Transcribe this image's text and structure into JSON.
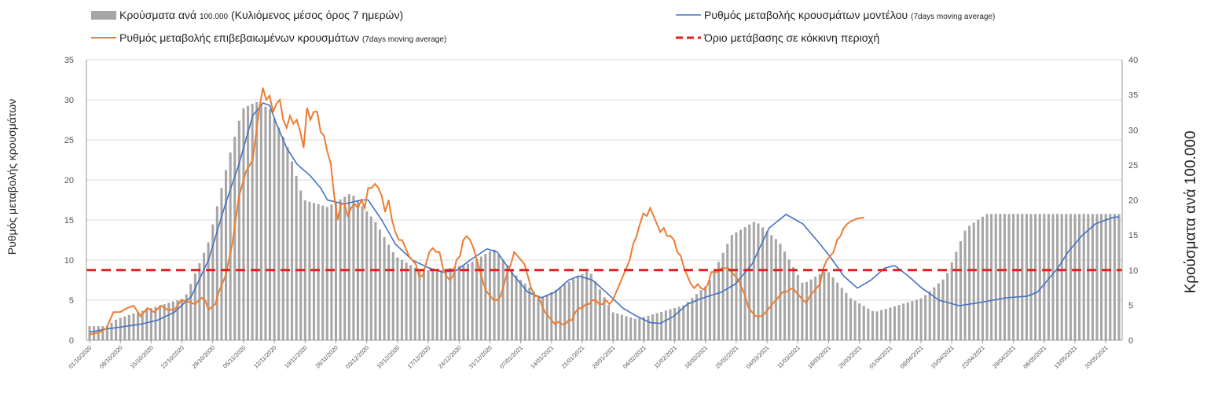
{
  "chart_data": {
    "type": "bar+line",
    "legend": {
      "bars": {
        "main": "Κρούσματα ανά ",
        "num": "100.000",
        "paren": " (Κυλιόμενος μέσος όρος 7 ημερών)"
      },
      "model": {
        "main": "Ρυθμός μεταβολής κρουσμάτων μοντέλου ",
        "paren": "(7days moving average)"
      },
      "confirmed": {
        "main": "Ρυθμός μεταβολής επιβεβαιωμένων κρουσμάτων ",
        "paren": "(7days moving average)"
      },
      "threshold": {
        "main": "Όριο μετάβασης σε κόκκινη περιοχή"
      }
    },
    "ylabel_left": "Ρυθμός μεταβολής κρουσμάτων",
    "ylabel_right": "Κρούσματα ανά 100.000",
    "ylim_left": [
      0,
      35
    ],
    "ylim_right": [
      0,
      40
    ],
    "yticks_left": [
      "0",
      "5",
      "10",
      "15",
      "20",
      "25",
      "30",
      "35"
    ],
    "yticks_right": [
      "0",
      "5",
      "10",
      "15",
      "20",
      "25",
      "30",
      "35",
      "40"
    ],
    "x_tick_labels": [
      "01/10/2020",
      "08/10/2020",
      "15/10/2020",
      "22/10/2020",
      "29/10/2020",
      "05/11/2020",
      "12/11/2020",
      "19/11/2020",
      "26/11/2020",
      "03/12/2020",
      "10/12/2020",
      "17/12/2020",
      "24/12/2020",
      "31/12/2020",
      "07/01/2021",
      "14/01/2021",
      "21/01/2021",
      "28/01/2021",
      "04/02/2021",
      "11/02/2021",
      "18/02/2021",
      "25/02/2021",
      "04/03/2021",
      "11/03/2021",
      "18/03/2021",
      "25/03/2021",
      "01/04/2021",
      "08/04/2021",
      "15/04/2021",
      "22/04/2021",
      "29/04/2021",
      "06/05/2021",
      "13/05/2021",
      "20/05/2021"
    ],
    "threshold_left": 8.75,
    "colors": {
      "bars": "#a6a6a6",
      "model": "#4472c4",
      "confirmed": "#ed7d31",
      "threshold": "#e0201b"
    },
    "grid": true,
    "legend_position": "top",
    "bars_anchor": [
      [
        0,
        2
      ],
      [
        5,
        2
      ],
      [
        8,
        3
      ],
      [
        14,
        4
      ],
      [
        21,
        5
      ],
      [
        28,
        6
      ],
      [
        35,
        14
      ],
      [
        41,
        26
      ],
      [
        45,
        33
      ],
      [
        49,
        34
      ],
      [
        53,
        33
      ],
      [
        58,
        28
      ],
      [
        63,
        20
      ],
      [
        70,
        19
      ],
      [
        77,
        21
      ],
      [
        84,
        17
      ],
      [
        90,
        12
      ],
      [
        97,
        10
      ],
      [
        104,
        10
      ],
      [
        112,
        11
      ],
      [
        119,
        13
      ],
      [
        126,
        9
      ],
      [
        133,
        6
      ],
      [
        140,
        8
      ],
      [
        147,
        10
      ],
      [
        154,
        4
      ],
      [
        161,
        3
      ],
      [
        168,
        4
      ],
      [
        175,
        5
      ],
      [
        182,
        8
      ],
      [
        189,
        15
      ],
      [
        196,
        17
      ],
      [
        203,
        14
      ],
      [
        210,
        8
      ],
      [
        217,
        10
      ],
      [
        224,
        6
      ],
      [
        231,
        4
      ],
      [
        238,
        5
      ],
      [
        245,
        6
      ],
      [
        252,
        9
      ],
      [
        258,
        16
      ],
      [
        264,
        18
      ]
    ],
    "model_anchor": [
      [
        0,
        1
      ],
      [
        5,
        1.4
      ],
      [
        10,
        1.7
      ],
      [
        15,
        2
      ],
      [
        20,
        2.5
      ],
      [
        25,
        3.5
      ],
      [
        30,
        5.5
      ],
      [
        35,
        10
      ],
      [
        40,
        17
      ],
      [
        44,
        22
      ],
      [
        48,
        28
      ],
      [
        51,
        29.6
      ],
      [
        53,
        29.3
      ],
      [
        55,
        27
      ],
      [
        58,
        24
      ],
      [
        61,
        22
      ],
      [
        65,
        20.5
      ],
      [
        68,
        19
      ],
      [
        70,
        17.5
      ],
      [
        75,
        17
      ],
      [
        80,
        17.5
      ],
      [
        82,
        17.5
      ],
      [
        86,
        15
      ],
      [
        90,
        12
      ],
      [
        95,
        10
      ],
      [
        100,
        9
      ],
      [
        104,
        8.5
      ],
      [
        108,
        8.7
      ],
      [
        112,
        10
      ],
      [
        117,
        11.4
      ],
      [
        120,
        11
      ],
      [
        125,
        8
      ],
      [
        129,
        6
      ],
      [
        133,
        5.3
      ],
      [
        137,
        6
      ],
      [
        141,
        7.5
      ],
      [
        144,
        8
      ],
      [
        148,
        7.5
      ],
      [
        152,
        6
      ],
      [
        157,
        4
      ],
      [
        161,
        3
      ],
      [
        165,
        2.2
      ],
      [
        168,
        2.1
      ],
      [
        172,
        3
      ],
      [
        176,
        4.5
      ],
      [
        180,
        5.2
      ],
      [
        186,
        6
      ],
      [
        190,
        7
      ],
      [
        195,
        9.5
      ],
      [
        200,
        14
      ],
      [
        205,
        15.7
      ],
      [
        210,
        14.5
      ],
      [
        215,
        12
      ],
      [
        218,
        10.4
      ],
      [
        222,
        8
      ],
      [
        226,
        6.5
      ],
      [
        230,
        7.5
      ],
      [
        234,
        9
      ],
      [
        237,
        9.3
      ],
      [
        241,
        8
      ],
      [
        245,
        6.5
      ],
      [
        250,
        5
      ],
      [
        256,
        4.3
      ],
      [
        262,
        4.7
      ],
      [
        270,
        5.3
      ],
      [
        276,
        5.5
      ],
      [
        279,
        6
      ],
      [
        282,
        7.5
      ],
      [
        285,
        9
      ],
      [
        288,
        11
      ],
      [
        292,
        13
      ],
      [
        296,
        14.5
      ],
      [
        301,
        15.3
      ],
      [
        303,
        15.4
      ]
    ],
    "confirmed_anchor": [
      [
        0,
        0.7
      ],
      [
        3,
        1
      ],
      [
        5,
        1.5
      ],
      [
        7,
        3.5
      ],
      [
        9,
        3.5
      ],
      [
        11,
        4
      ],
      [
        13,
        4.3
      ],
      [
        15,
        3
      ],
      [
        17,
        4
      ],
      [
        19,
        3.5
      ],
      [
        21,
        4.3
      ],
      [
        23,
        3.8
      ],
      [
        25,
        3.8
      ],
      [
        27,
        5
      ],
      [
        29,
        4.8
      ],
      [
        31,
        4.5
      ],
      [
        33,
        5.3
      ],
      [
        34,
        5
      ],
      [
        35,
        3.8
      ],
      [
        37,
        4.5
      ],
      [
        38,
        6
      ],
      [
        40,
        8
      ],
      [
        42,
        12
      ],
      [
        44,
        18
      ],
      [
        46,
        21
      ],
      [
        48,
        22.5
      ],
      [
        50,
        29
      ],
      [
        51,
        31.5
      ],
      [
        52,
        30
      ],
      [
        53,
        30.5
      ],
      [
        54,
        28.5
      ],
      [
        55,
        29.5
      ],
      [
        56,
        30
      ],
      [
        57,
        27.5
      ],
      [
        58,
        26.5
      ],
      [
        59,
        28
      ],
      [
        60,
        27
      ],
      [
        61,
        27.5
      ],
      [
        62,
        26
      ],
      [
        63,
        24
      ],
      [
        64,
        29
      ],
      [
        65,
        27.5
      ],
      [
        66,
        28.5
      ],
      [
        67,
        28.5
      ],
      [
        68,
        26
      ],
      [
        69,
        25.5
      ],
      [
        70,
        23.5
      ],
      [
        71,
        22
      ],
      [
        72,
        18
      ],
      [
        73,
        15
      ],
      [
        74,
        17
      ],
      [
        75,
        17
      ],
      [
        76,
        15.5
      ],
      [
        77,
        16.5
      ],
      [
        78,
        17
      ],
      [
        79,
        16.5
      ],
      [
        80,
        17.5
      ],
      [
        81,
        16.5
      ],
      [
        82,
        19
      ],
      [
        83,
        19
      ],
      [
        84,
        19.5
      ],
      [
        85,
        19
      ],
      [
        86,
        18
      ],
      [
        87,
        16
      ],
      [
        88,
        17.5
      ],
      [
        89,
        15
      ],
      [
        90,
        13.5
      ],
      [
        91,
        12.5
      ],
      [
        92,
        12.5
      ],
      [
        93,
        11.5
      ],
      [
        94,
        10.5
      ],
      [
        95,
        10
      ],
      [
        96,
        9.5
      ],
      [
        97,
        8
      ],
      [
        98,
        8
      ],
      [
        99,
        9.5
      ],
      [
        100,
        11
      ],
      [
        101,
        11.5
      ],
      [
        102,
        11
      ],
      [
        103,
        11
      ],
      [
        104,
        9
      ],
      [
        105,
        8
      ],
      [
        106,
        7.5
      ],
      [
        107,
        8
      ],
      [
        108,
        10
      ],
      [
        109,
        10.5
      ],
      [
        110,
        12.5
      ],
      [
        111,
        13
      ],
      [
        112,
        12.5
      ],
      [
        113,
        11.5
      ],
      [
        114,
        10
      ],
      [
        115,
        8.5
      ],
      [
        116,
        7
      ],
      [
        117,
        6
      ],
      [
        118,
        5.5
      ],
      [
        119,
        5
      ],
      [
        120,
        5
      ],
      [
        121,
        5.5
      ],
      [
        122,
        7
      ],
      [
        123,
        8.5
      ],
      [
        124,
        9.5
      ],
      [
        125,
        11
      ],
      [
        126,
        10.5
      ],
      [
        127,
        10
      ],
      [
        128,
        9.5
      ],
      [
        129,
        8
      ],
      [
        130,
        6.5
      ],
      [
        131,
        5.5
      ],
      [
        132,
        5.5
      ],
      [
        133,
        4.5
      ],
      [
        134,
        3.5
      ],
      [
        135,
        3
      ],
      [
        136,
        2.5
      ],
      [
        137,
        2
      ],
      [
        138,
        2.3
      ],
      [
        139,
        2
      ],
      [
        140,
        2
      ],
      [
        141,
        2.5
      ],
      [
        142,
        2.5
      ],
      [
        143,
        3.5
      ],
      [
        144,
        4
      ],
      [
        145,
        4
      ],
      [
        146,
        4.5
      ],
      [
        147,
        4.5
      ],
      [
        148,
        5
      ],
      [
        149,
        5
      ],
      [
        150,
        4.5
      ],
      [
        151,
        4.5
      ],
      [
        152,
        5
      ],
      [
        153,
        4.5
      ],
      [
        154,
        5
      ],
      [
        155,
        6
      ],
      [
        156,
        7
      ],
      [
        157,
        8
      ],
      [
        158,
        9
      ],
      [
        159,
        10
      ],
      [
        160,
        12
      ],
      [
        161,
        13
      ],
      [
        162,
        14.5
      ],
      [
        163,
        15.8
      ],
      [
        164,
        15.5
      ],
      [
        165,
        16.5
      ],
      [
        166,
        15.5
      ],
      [
        167,
        14.5
      ],
      [
        168,
        13.5
      ],
      [
        169,
        14
      ],
      [
        170,
        13
      ],
      [
        171,
        13
      ],
      [
        172,
        12.5
      ],
      [
        173,
        11
      ],
      [
        174,
        10.5
      ],
      [
        175,
        9
      ],
      [
        176,
        8
      ],
      [
        177,
        7
      ],
      [
        178,
        6.5
      ],
      [
        179,
        7
      ],
      [
        180,
        6.5
      ],
      [
        181,
        6.3
      ],
      [
        182,
        7
      ],
      [
        183,
        8.5
      ],
      [
        184,
        8.5
      ],
      [
        185,
        8.5
      ],
      [
        186,
        9
      ],
      [
        187,
        9
      ],
      [
        188,
        9
      ],
      [
        189,
        8.5
      ],
      [
        190,
        8
      ],
      [
        191,
        7.5
      ],
      [
        192,
        6.5
      ],
      [
        193,
        5.5
      ],
      [
        194,
        4
      ],
      [
        195,
        3.5
      ],
      [
        196,
        3
      ],
      [
        197,
        3
      ],
      [
        198,
        3
      ],
      [
        199,
        3.5
      ],
      [
        200,
        4
      ],
      [
        201,
        4.5
      ],
      [
        202,
        5
      ],
      [
        203,
        5.5
      ],
      [
        204,
        6
      ],
      [
        205,
        6
      ],
      [
        206,
        6.3
      ],
      [
        207,
        6.5
      ],
      [
        208,
        6
      ],
      [
        209,
        5.5
      ],
      [
        210,
        5
      ],
      [
        211,
        4.7
      ],
      [
        212,
        5.5
      ],
      [
        213,
        6
      ],
      [
        214,
        6.5
      ],
      [
        215,
        7
      ],
      [
        216,
        9
      ],
      [
        217,
        10
      ],
      [
        218,
        10.5
      ],
      [
        219,
        11
      ],
      [
        220,
        12.5
      ],
      [
        221,
        13
      ],
      [
        222,
        14
      ],
      [
        223,
        14.5
      ],
      [
        224,
        14.8
      ],
      [
        225,
        15
      ],
      [
        226,
        15.2
      ],
      [
        228,
        15.3
      ]
    ]
  }
}
